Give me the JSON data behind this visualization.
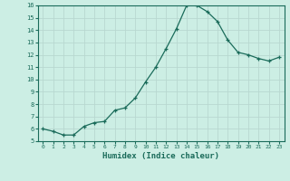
{
  "x": [
    0,
    1,
    2,
    3,
    4,
    5,
    6,
    7,
    8,
    9,
    10,
    11,
    12,
    13,
    14,
    15,
    16,
    17,
    18,
    19,
    20,
    21,
    22,
    23
  ],
  "y": [
    6.0,
    5.8,
    5.5,
    5.5,
    6.2,
    6.5,
    6.6,
    7.5,
    7.7,
    8.5,
    9.8,
    11.0,
    12.5,
    14.1,
    16.0,
    16.0,
    15.5,
    14.7,
    13.2,
    12.2,
    12.0,
    11.7,
    11.5,
    11.8
  ],
  "xlabel": "Humidex (Indice chaleur)",
  "ylim": [
    5,
    16
  ],
  "xlim": [
    -0.5,
    23.5
  ],
  "yticks": [
    5,
    6,
    7,
    8,
    9,
    10,
    11,
    12,
    13,
    14,
    15,
    16
  ],
  "xticks": [
    0,
    1,
    2,
    3,
    4,
    5,
    6,
    7,
    8,
    9,
    10,
    11,
    12,
    13,
    14,
    15,
    16,
    17,
    18,
    19,
    20,
    21,
    22,
    23
  ],
  "line_color": "#1a6b5a",
  "marker": "+",
  "bg_color": "#cceee4",
  "grid_color": "#b8d8d0",
  "label_color": "#1a6b5a"
}
